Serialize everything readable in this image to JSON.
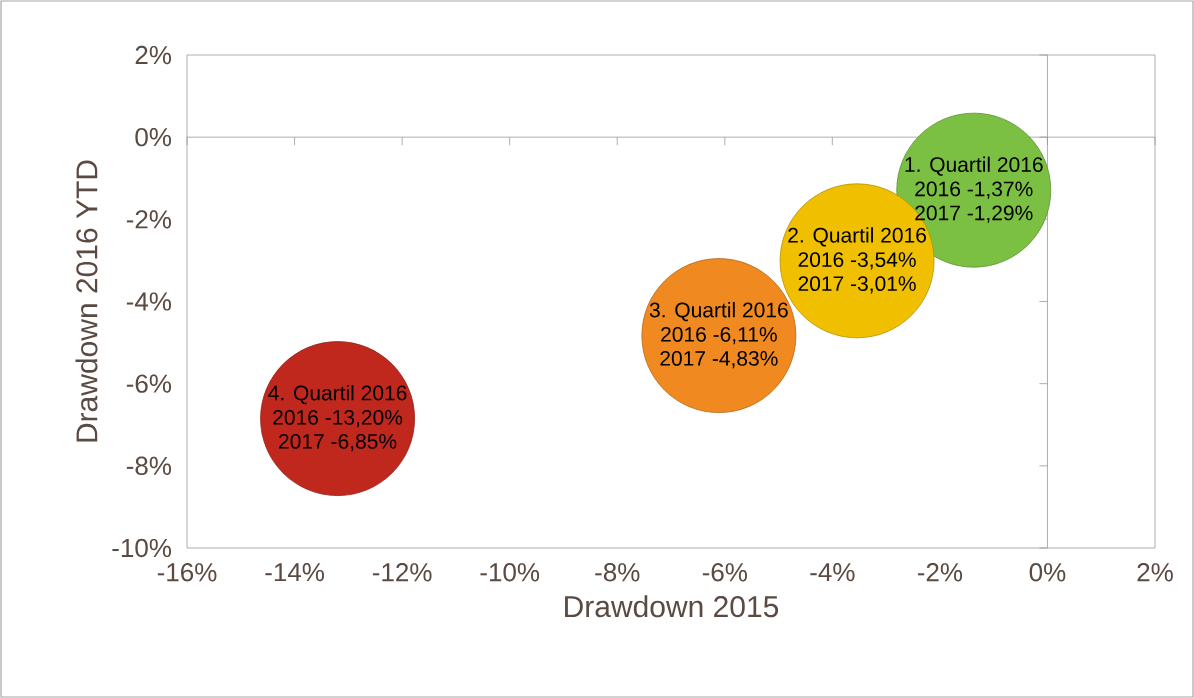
{
  "chart_data": {
    "type": "bubble",
    "xlabel": "Drawdown 2015",
    "ylabel": "Drawdown 2016 YTD",
    "xlim": [
      -16,
      2
    ],
    "ylim": [
      -10,
      2
    ],
    "xticks": [
      {
        "value": -16,
        "label": "-16%"
      },
      {
        "value": -14,
        "label": "-14%"
      },
      {
        "value": -12,
        "label": "-12%"
      },
      {
        "value": -10,
        "label": "-10%"
      },
      {
        "value": -8,
        "label": "-8%"
      },
      {
        "value": -6,
        "label": "-6%"
      },
      {
        "value": -4,
        "label": "-4%"
      },
      {
        "value": -2,
        "label": "-2%"
      },
      {
        "value": 0,
        "label": "0%"
      },
      {
        "value": 2,
        "label": "2%"
      }
    ],
    "yticks": [
      {
        "value": -10,
        "label": "-10%"
      },
      {
        "value": -8,
        "label": "-8%"
      },
      {
        "value": -6,
        "label": "-6%"
      },
      {
        "value": -4,
        "label": "-4%"
      },
      {
        "value": -2,
        "label": "-2%"
      },
      {
        "value": 0,
        "label": "0%"
      },
      {
        "value": 2,
        "label": "2%"
      }
    ],
    "series": [
      {
        "name": "1. Quartil 2016",
        "color": "#7cc043",
        "x": [
          -1.37
        ],
        "values": [
          -1.29
        ],
        "sizes": [
          1
        ]
      },
      {
        "name": "2. Quartil 2016",
        "color": "#f0c000",
        "x": [
          -3.54
        ],
        "values": [
          -3.01
        ],
        "sizes": [
          1
        ]
      },
      {
        "name": "3. Quartil 2016",
        "color": "#f08a20",
        "x": [
          -6.11
        ],
        "values": [
          -4.83
        ],
        "sizes": [
          1
        ]
      },
      {
        "name": "4. Quartil 2016",
        "color": "#c0281e",
        "x": [
          -13.2
        ],
        "values": [
          -6.85
        ],
        "sizes": [
          1
        ]
      }
    ],
    "annotations": [
      {
        "text": "2016 -1,37%",
        "x": -1.37,
        "y": -1.29
      },
      {
        "text": "2017 -1,29%",
        "x": -1.37,
        "y": -1.29
      },
      {
        "text": "2016 -3,54%",
        "x": -3.54,
        "y": -3.01
      },
      {
        "text": "2017 -3,01%",
        "x": -3.54,
        "y": -3.01
      },
      {
        "text": "2016 -6,11%",
        "x": -6.11,
        "y": -4.83
      },
      {
        "text": "2017 -4,83%",
        "x": -6.11,
        "y": -4.83
      },
      {
        "text": "2016 -13,20%",
        "x": -13.2,
        "y": -6.85
      },
      {
        "text": "2017 -6,85%",
        "x": -13.2,
        "y": -6.85
      }
    ]
  }
}
